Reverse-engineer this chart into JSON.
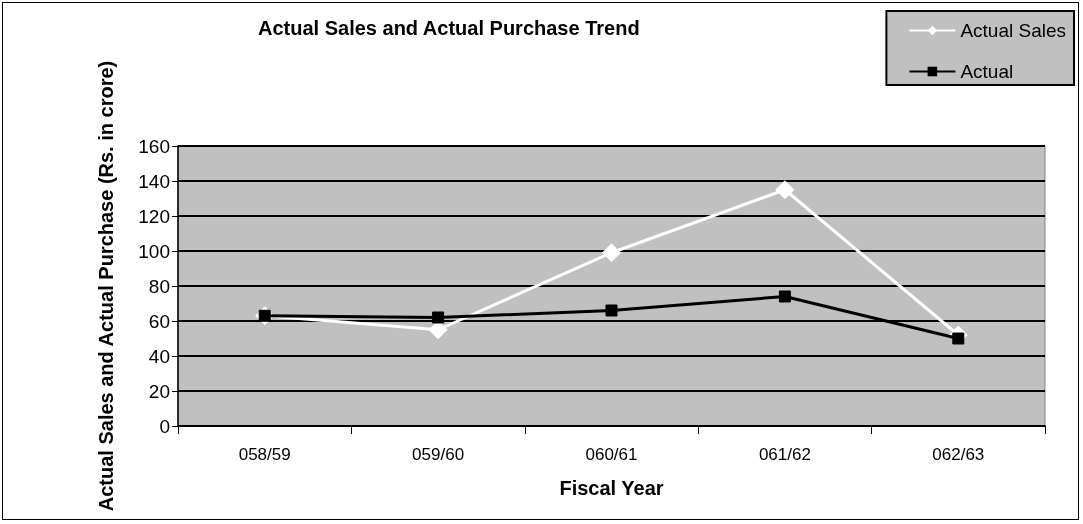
{
  "chart_data": {
    "type": "line",
    "title": "Actual Sales and Actual Purchase Trend",
    "xlabel": "Fiscal Year",
    "ylabel": "Actual Sales and Actual Purchase (Rs. in crore)",
    "categories": [
      "058/59",
      "059/60",
      "060/61",
      "061/62",
      "062/63"
    ],
    "series": [
      {
        "name": "Actual Sales",
        "color": "#ffffff",
        "marker": "diamond",
        "values": [
          63,
          55,
          99,
          135,
          52
        ]
      },
      {
        "name": "Actual",
        "color": "#000000",
        "marker": "square",
        "values": [
          63,
          62,
          66,
          74,
          50
        ]
      }
    ],
    "ylim": [
      0,
      160
    ],
    "yticks": [
      0,
      20,
      40,
      60,
      80,
      100,
      120,
      140,
      160
    ],
    "grid": "y",
    "legend": "top right"
  }
}
